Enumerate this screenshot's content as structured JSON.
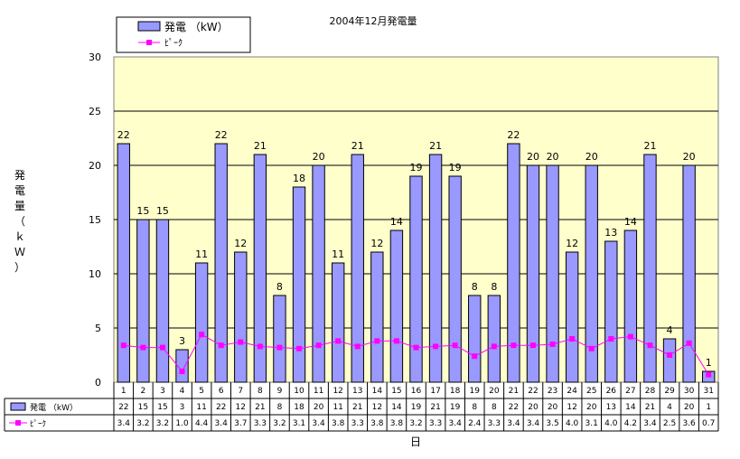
{
  "chart_data": {
    "type": "bar",
    "title": "2004年12月発電量",
    "xlabel": "日",
    "ylabel": "発電量（ｋＷ）",
    "ylim": [
      0,
      30
    ],
    "yticks": [
      0,
      5,
      10,
      15,
      20,
      25,
      30
    ],
    "grid": true,
    "legend_position": "top-left",
    "categories": [
      "1",
      "2",
      "3",
      "4",
      "5",
      "6",
      "7",
      "8",
      "9",
      "10",
      "11",
      "12",
      "13",
      "14",
      "15",
      "16",
      "17",
      "18",
      "19",
      "20",
      "21",
      "22",
      "23",
      "24",
      "25",
      "26",
      "27",
      "28",
      "29",
      "30",
      "31"
    ],
    "series": [
      {
        "name": "発電 （kW）",
        "type": "bar",
        "color": "#9999ff",
        "values": [
          22,
          15,
          15,
          3,
          11,
          22,
          12,
          21,
          8,
          18,
          20,
          11,
          21,
          12,
          14,
          19,
          21,
          19,
          8,
          8,
          22,
          20,
          20,
          12,
          20,
          13,
          14,
          21,
          4,
          20,
          1
        ]
      },
      {
        "name": "ﾋﾟｰｸ",
        "type": "line",
        "color": "#ff00ff",
        "values": [
          3.4,
          3.2,
          3.2,
          1.0,
          4.4,
          3.4,
          3.7,
          3.3,
          3.2,
          3.1,
          3.4,
          3.8,
          3.3,
          3.8,
          3.8,
          3.2,
          3.3,
          3.4,
          2.4,
          3.3,
          3.4,
          3.4,
          3.5,
          4.0,
          3.1,
          4.0,
          4.2,
          3.4,
          2.5,
          3.6,
          0.7
        ]
      }
    ],
    "plot_background": "#ffffcc"
  }
}
